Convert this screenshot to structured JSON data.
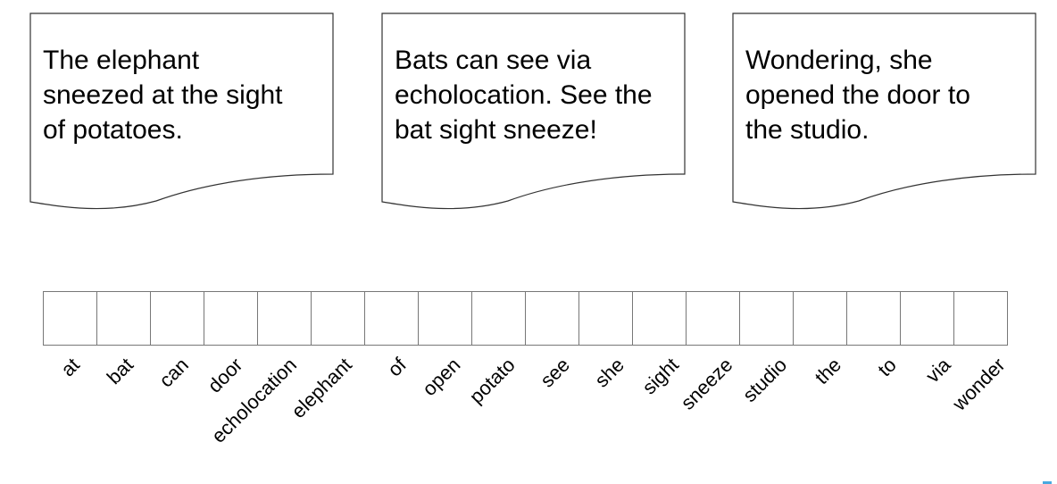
{
  "documents": [
    {
      "lines": [
        "The elephant",
        "sneezed at the sight",
        "of potatoes."
      ]
    },
    {
      "lines": [
        "Bats can see via",
        "echolocation. See the",
        "bat sight sneeze!"
      ]
    },
    {
      "lines": [
        "Wondering, she",
        "opened the door to",
        "the studio."
      ]
    }
  ],
  "vocabulary": [
    "at",
    "bat",
    "can",
    "door",
    "echolocation",
    "elephant",
    "of",
    "open",
    "potato",
    "see",
    "she",
    "sight",
    "sneeze",
    "studio",
    "the",
    "to",
    "via",
    "wonder"
  ]
}
